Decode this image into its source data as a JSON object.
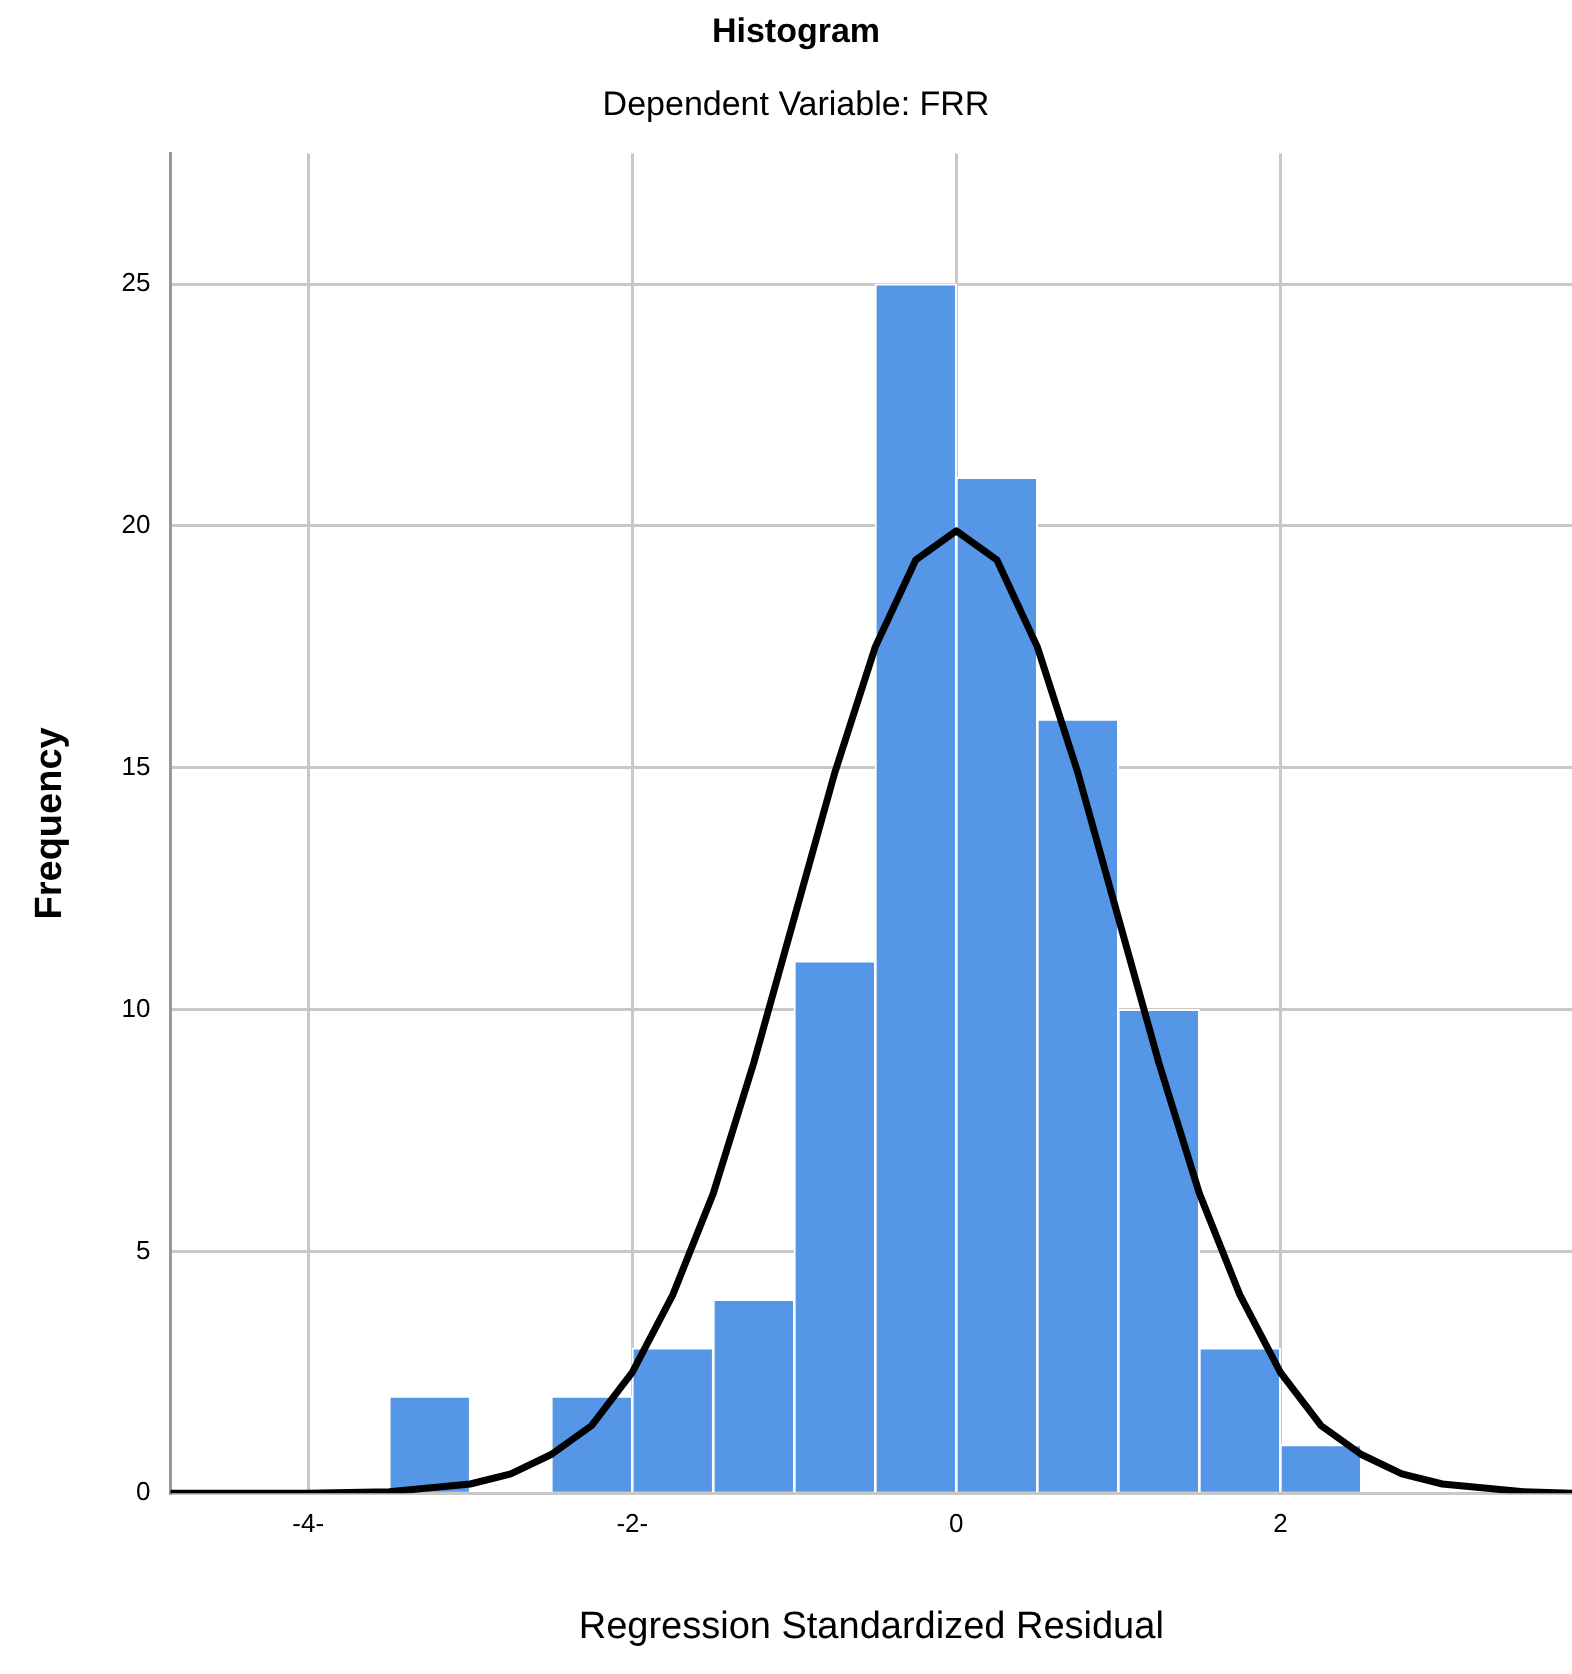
{
  "chart_data": {
    "type": "histogram",
    "title": "Histogram",
    "subtitle": "Dependent Variable: FRR",
    "xlabel": "Regression Standardized Residual",
    "ylabel": "Frequency",
    "bins": [
      -3.5,
      -3,
      -2.5,
      -2,
      -1.5,
      -1,
      -0.5,
      0,
      0.5,
      1,
      1.5,
      2,
      2.5
    ],
    "values": [
      2,
      0,
      2,
      3,
      4,
      11,
      25,
      21,
      16,
      10,
      3,
      1
    ],
    "color": "#5596e6",
    "series": [
      {
        "type": "line",
        "color": "#000000",
        "x": [
          -4.85,
          -4.5,
          -4,
          -3.5,
          -3,
          -2.75,
          -2.5,
          -2.25,
          -2,
          -1.75,
          -1.5,
          -1.25,
          -1,
          -0.75,
          -0.5,
          -0.25,
          0,
          0.25,
          0.5,
          0.75,
          1,
          1.25,
          1.5,
          1.75,
          2,
          2.25,
          2.5,
          2.75,
          3,
          3.5,
          3.8
        ],
        "values": [
          0,
          0,
          0,
          0.03,
          0.19,
          0.4,
          0.8,
          1.4,
          2.5,
          4.1,
          6.2,
          8.9,
          11.9,
          14.9,
          17.5,
          19.3,
          19.9,
          19.3,
          17.5,
          14.9,
          11.9,
          8.9,
          6.2,
          4.1,
          2.5,
          1.4,
          0.8,
          0.4,
          0.19,
          0.03,
          0
        ]
      }
    ],
    "xlim": [
      -4.85,
      3.8
    ],
    "xticks": [
      {
        "value": -4,
        "label": "-4-"
      },
      {
        "value": -2,
        "label": "-2-"
      },
      0,
      2
    ],
    "ylim": [
      0,
      27.7
    ],
    "yticks": [
      0,
      5,
      10,
      15,
      20,
      25
    ],
    "grid": true,
    "legend": false,
    "marker": "none",
    "line_style": "solid"
  }
}
